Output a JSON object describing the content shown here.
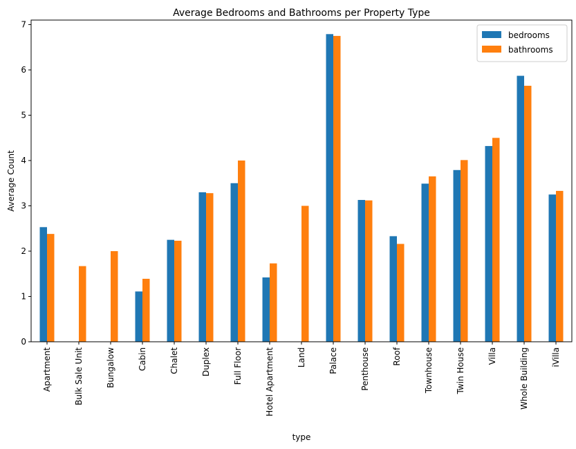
{
  "chart_data": {
    "type": "bar",
    "title": "Average Bedrooms and Bathrooms per Property Type",
    "xlabel": "type",
    "ylabel": "Average Count",
    "ylim": [
      0,
      7.1
    ],
    "yticks": [
      0,
      1,
      2,
      3,
      4,
      5,
      6,
      7
    ],
    "grid": false,
    "legend_position": "top-right",
    "categories": [
      "Apartment",
      "Bulk Sale Unit",
      "Bungalow",
      "Cabin",
      "Chalet",
      "Duplex",
      "Full Floor",
      "Hotel Apartment",
      "Land",
      "Palace",
      "Penthouse",
      "Roof",
      "Townhouse",
      "Twin House",
      "Villa",
      "Whole Building",
      "iVilla"
    ],
    "series": [
      {
        "name": "bedrooms",
        "color": "#1f77b4",
        "values": [
          2.53,
          0,
          0,
          1.11,
          2.25,
          3.3,
          3.5,
          1.42,
          0,
          6.79,
          3.13,
          2.33,
          3.49,
          3.79,
          4.32,
          5.87,
          3.25
        ]
      },
      {
        "name": "bathrooms",
        "color": "#ff7f0e",
        "values": [
          2.38,
          1.67,
          2.0,
          1.39,
          2.23,
          3.28,
          4.0,
          1.73,
          3.0,
          6.75,
          3.12,
          2.16,
          3.65,
          4.01,
          4.5,
          5.65,
          3.33
        ]
      }
    ]
  }
}
